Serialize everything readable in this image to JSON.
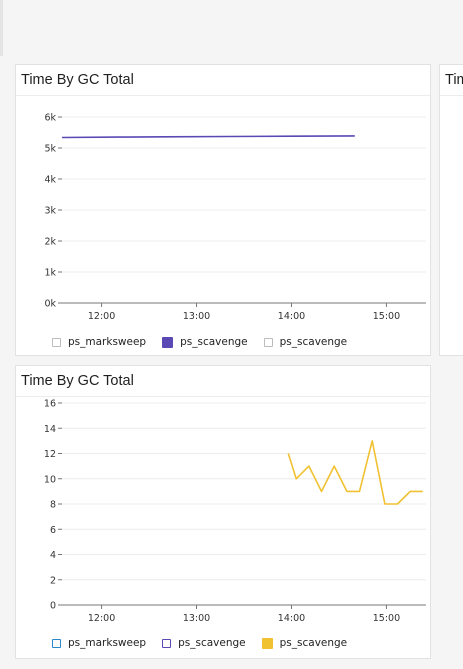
{
  "colors": {
    "purple": "#5a48b4",
    "yellow": "#f0c131",
    "blue_outline": "#2c87c9",
    "purple_outline": "#5a48b4",
    "grey_outline": "#bcbcbc"
  },
  "panels": [
    {
      "title": "Time By GC Total",
      "legend": [
        {
          "label": "ps_marksweep",
          "swatch": "outline-grey"
        },
        {
          "label": "ps_scavenge",
          "swatch": "filled-purple"
        },
        {
          "label": "ps_scavenge",
          "swatch": "outline-grey"
        }
      ]
    },
    {
      "title": "Tim"
    },
    {
      "title": "Time By GC Total",
      "legend": [
        {
          "label": "ps_marksweep",
          "swatch": "outline-blue"
        },
        {
          "label": "ps_scavenge",
          "swatch": "outline-purple"
        },
        {
          "label": "ps_scavenge",
          "swatch": "filled-yellow"
        }
      ]
    }
  ],
  "chart_data": [
    {
      "type": "line",
      "title": "Time By GC Total",
      "x_ticks": [
        "12:00",
        "13:00",
        "14:00",
        "15:00"
      ],
      "y_ticks": [
        "0k",
        "1k",
        "2k",
        "3k",
        "4k",
        "5k",
        "6k"
      ],
      "ylim": [
        0,
        6000
      ],
      "xlim_minutes": [
        695,
        925
      ],
      "grid": true,
      "legend_position": "bottom",
      "series": [
        {
          "name": "ps_scavenge",
          "color": "#5a48b4",
          "x": [
            695,
            730,
            760,
            800,
            840,
            880
          ],
          "y": [
            5340,
            5350,
            5360,
            5370,
            5380,
            5390
          ]
        }
      ]
    },
    {
      "type": "line",
      "title": "Time By GC Total",
      "x_ticks": [
        "12:00",
        "13:00",
        "14:00",
        "15:00"
      ],
      "y_ticks": [
        "0",
        "2",
        "4",
        "6",
        "8",
        "10",
        "12",
        "14",
        "16"
      ],
      "ylim": [
        0,
        16
      ],
      "xlim_minutes": [
        695,
        925
      ],
      "grid": true,
      "legend_position": "bottom",
      "series": [
        {
          "name": "ps_scavenge",
          "color": "#f0c131",
          "x": [
            838,
            843,
            851,
            859,
            867,
            875,
            883,
            891,
            899,
            907,
            915,
            923
          ],
          "y": [
            12,
            10,
            11,
            9,
            11,
            9,
            9,
            13,
            8,
            8,
            9,
            9
          ]
        }
      ]
    }
  ]
}
